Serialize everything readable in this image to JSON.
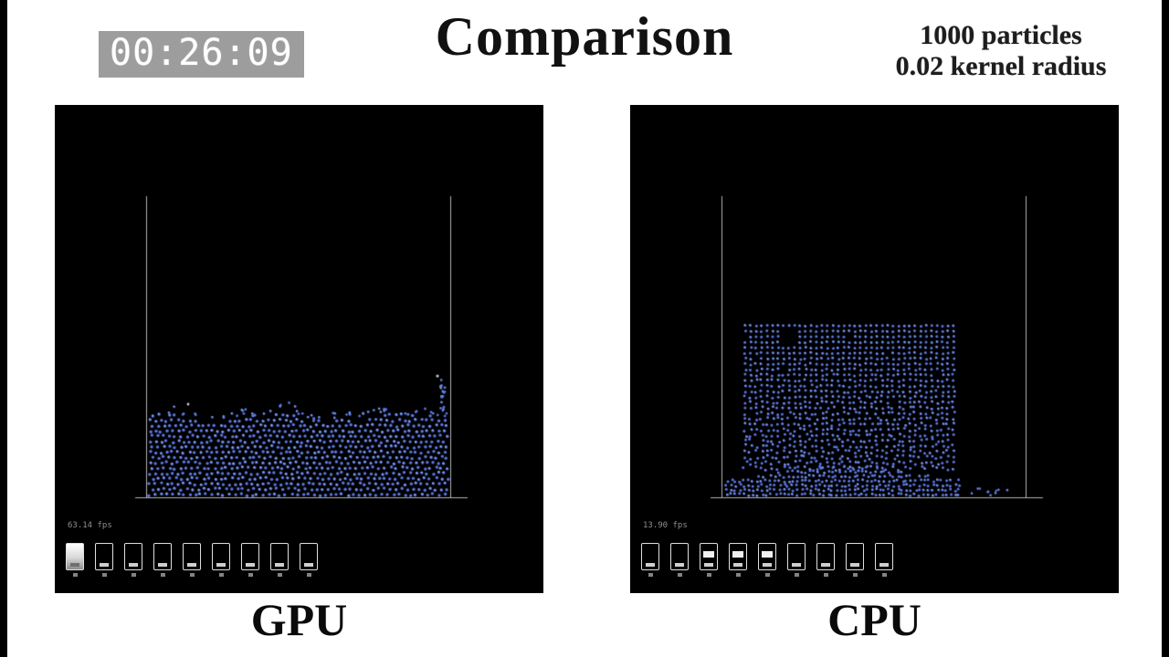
{
  "header": {
    "timer": "00:26:09",
    "title": "Comparison",
    "particles_info": "1000 particles",
    "kernel_info": "0.02 kernel radius"
  },
  "panels": [
    {
      "id": "gpu",
      "label": "GPU",
      "fps": "63.14 fps",
      "toolbar_states": [
        "selected",
        "empty",
        "empty",
        "empty",
        "empty",
        "empty",
        "empty",
        "empty",
        "empty"
      ],
      "sim": {
        "mode": "settled",
        "color": "#5b77dd",
        "highlight": "#9db1f2"
      }
    },
    {
      "id": "cpu",
      "label": "CPU",
      "fps": "13.90 fps",
      "toolbar_states": [
        "empty",
        "empty",
        "half",
        "half",
        "half",
        "empty",
        "empty",
        "empty",
        "empty"
      ],
      "sim": {
        "mode": "lattice",
        "color": "#5b77dd",
        "highlight": "#9db1f2"
      }
    }
  ],
  "colors": {
    "panel_bg": "#000000",
    "container_line": "#b2b2b2",
    "timer_bg": "#9d9d9d",
    "timer_fg": "#ffffff"
  }
}
